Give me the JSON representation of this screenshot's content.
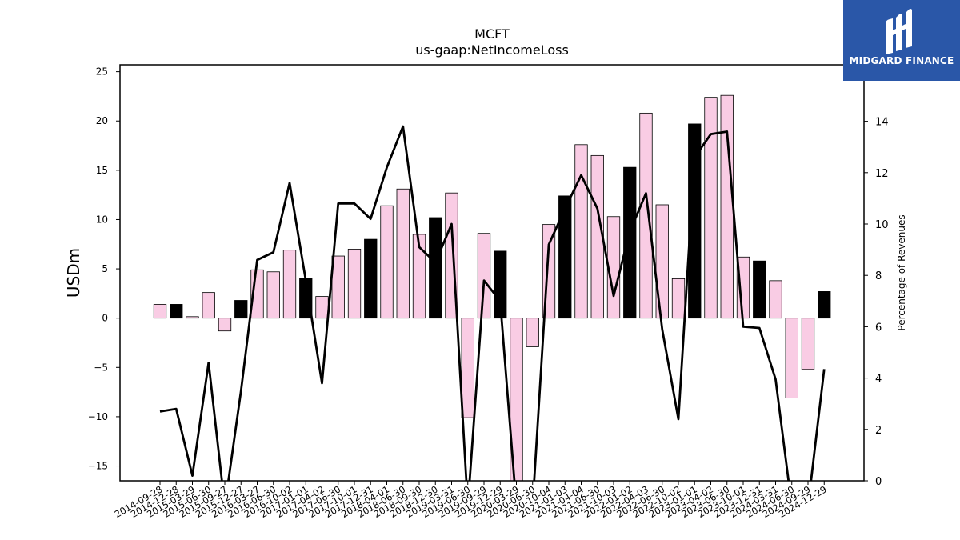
{
  "chart_data": {
    "type": "bar+line",
    "title": "MCFT",
    "subtitle": "us-gaap:NetIncomeLoss",
    "ylabel": "USDm",
    "y2label": "Percentage of Revenues",
    "ylim": [
      -16.5,
      25.7
    ],
    "y2lim": [
      0,
      16.2
    ],
    "yticks": [
      -15,
      -10,
      -5,
      0,
      5,
      10,
      15,
      20,
      25
    ],
    "y2ticks": [
      0,
      2,
      4,
      6,
      8,
      10,
      12,
      14
    ],
    "categories": [
      "2014-09-28",
      "2014-12-28",
      "2015-03-29",
      "2015-06-30",
      "2015-09-27",
      "2015-12-27",
      "2016-03-27",
      "2016-06-30",
      "2016-10-02",
      "2017-01-01",
      "2017-04-02",
      "2017-06-30",
      "2017-10-01",
      "2017-12-31",
      "2018-04-01",
      "2018-06-30",
      "2018-09-30",
      "2018-12-30",
      "2019-03-31",
      "2019-06-30",
      "2019-09-29",
      "2019-12-29",
      "2020-03-29",
      "2020-06-30",
      "2020-10-04",
      "2021-01-03",
      "2021-04-04",
      "2021-06-30",
      "2021-10-03",
      "2022-01-02",
      "2022-04-03",
      "2022-06-30",
      "2022-10-02",
      "2023-01-01",
      "2023-04-02",
      "2023-06-30",
      "2023-10-01",
      "2023-12-31",
      "2024-03-31",
      "2024-06-30",
      "2024-09-29",
      "2024-12-29"
    ],
    "series": [
      {
        "kind": "bar",
        "axis": "left",
        "values": [
          1.4,
          1.4,
          0.15,
          2.6,
          -1.3,
          1.8,
          4.9,
          4.7,
          6.9,
          4.0,
          2.2,
          6.3,
          7.0,
          8.0,
          11.4,
          13.1,
          8.5,
          10.2,
          12.7,
          -10.1,
          8.6,
          6.8,
          -17.5,
          -2.9,
          9.5,
          12.4,
          17.6,
          16.5,
          10.3,
          15.3,
          20.8,
          11.5,
          4.0,
          19.7,
          22.4,
          22.6,
          6.2,
          5.8,
          3.8,
          -8.1,
          -5.2,
          2.7
        ],
        "highlight": [
          false,
          true,
          false,
          false,
          false,
          true,
          false,
          false,
          false,
          true,
          false,
          false,
          false,
          true,
          false,
          false,
          false,
          true,
          false,
          false,
          false,
          true,
          false,
          false,
          false,
          true,
          false,
          false,
          false,
          true,
          false,
          false,
          false,
          true,
          false,
          false,
          false,
          true,
          false,
          false,
          false,
          true
        ]
      },
      {
        "kind": "line",
        "axis": "right",
        "values": [
          2.7,
          2.8,
          0.2,
          4.6,
          -1.0,
          3.5,
          8.6,
          8.9,
          11.6,
          7.8,
          3.8,
          10.8,
          10.8,
          10.2,
          12.2,
          13.8,
          9.1,
          8.5,
          10.0,
          -1.0,
          7.8,
          7.0,
          -1.0,
          -1.0,
          9.2,
          10.6,
          11.9,
          10.6,
          7.2,
          9.7,
          11.2,
          5.9,
          2.4,
          12.6,
          13.5,
          13.6,
          6.0,
          5.95,
          3.95,
          -1.0,
          -1.0,
          4.35
        ]
      }
    ],
    "colors": {
      "bar": "#f9cce4",
      "bar_highlight": "#000000",
      "bar_edge": "#000000",
      "line": "#000000",
      "axis": "#000000"
    },
    "grid": false
  },
  "logo": {
    "text": "MIDGARD FINANCE",
    "icon": "midgard-logo-icon"
  }
}
